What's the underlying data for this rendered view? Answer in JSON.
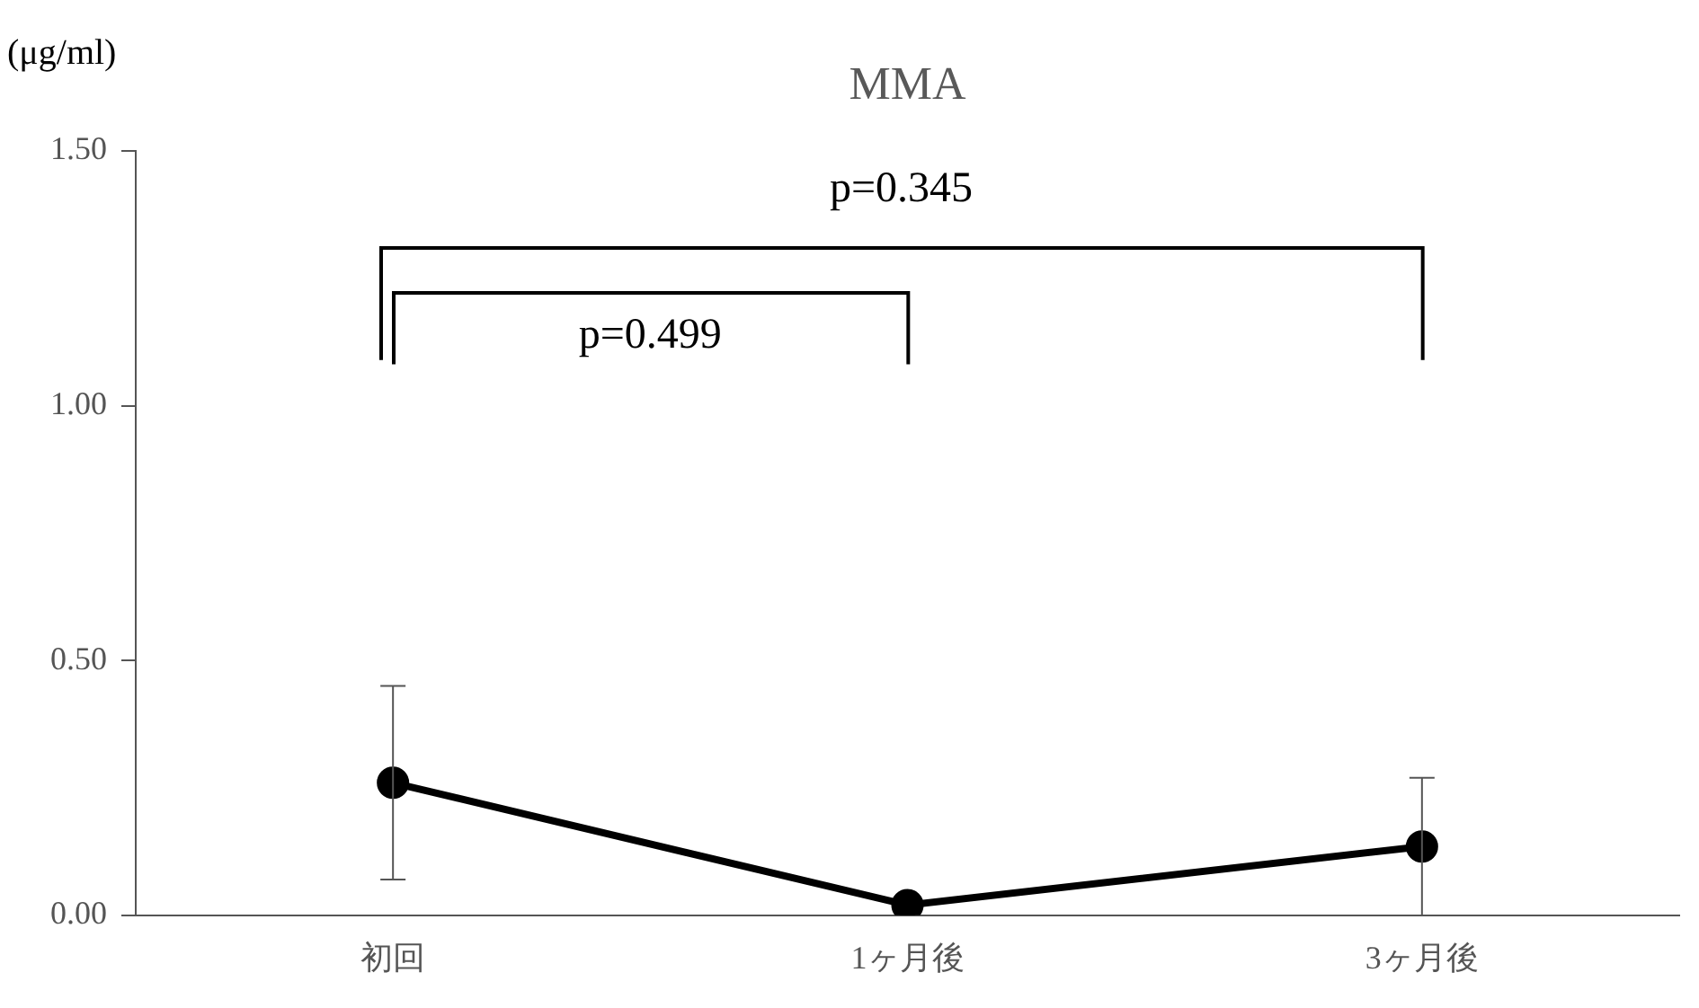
{
  "chart_data": {
    "type": "line",
    "title": "MMA",
    "ylabel": "(μg/ml)",
    "categories": [
      "初回",
      "1ヶ月後",
      "3ヶ月後"
    ],
    "series": [
      {
        "color": "#000000",
        "values": [
          0.26,
          0.02,
          0.135
        ],
        "errors": [
          [
            0.07,
            0.45
          ],
          null,
          [
            0,
            0.27
          ]
        ]
      }
    ],
    "ylim": [
      0,
      1.5
    ],
    "yticks": [
      {
        "value": 0,
        "label": "0.00"
      },
      {
        "value": 0.5,
        "label": "0.50"
      },
      {
        "value": 1,
        "label": "1.00"
      },
      {
        "value": 1.5,
        "label": "1.50"
      }
    ],
    "annotations": [
      "p=0.499",
      "p=0.345"
    ],
    "marker": "circle",
    "line_style": "solid",
    "grid": false,
    "legend": false
  }
}
